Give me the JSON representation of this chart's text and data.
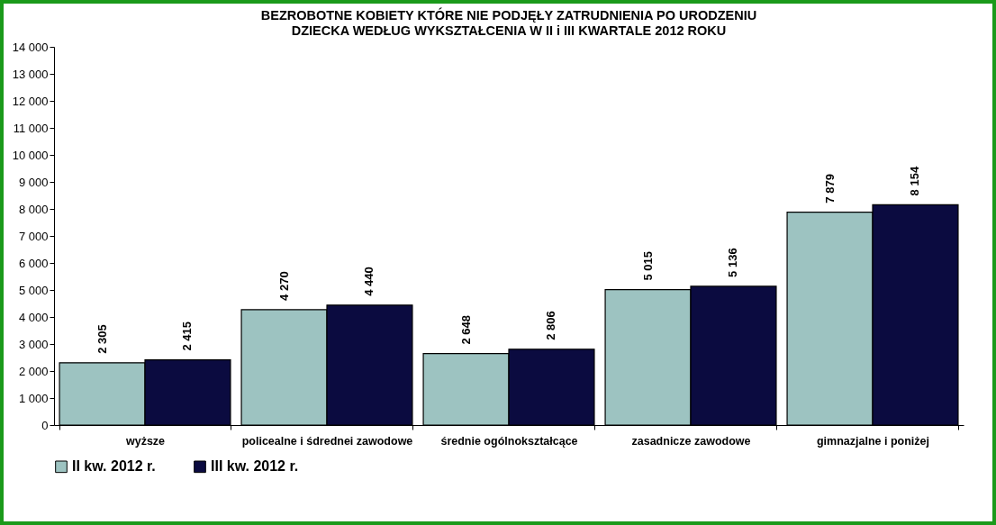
{
  "chart_data": {
    "type": "bar",
    "title": "BEZROBOTNE KOBIETY KTÓRE NIE PODJĘŁY ZATRUDNIENIA  PO URODZENIU\nDZIECKA WEDŁUG WYKSZTAŁCENIA  W II i III KWARTALE 2012 ROKU",
    "categories": [
      "wyższe",
      "policealne i śdrednei zawodowe",
      "średnie ogólnokształcące",
      "zasadnicze zawodowe",
      "gimnazjalne i poniżej"
    ],
    "series": [
      {
        "name": "II kw. 2012 r.",
        "color": "#9dc3c1",
        "values": [
          2305,
          4270,
          2648,
          5015,
          7879
        ],
        "value_labels": [
          "2 305",
          "4 270",
          "2 648",
          "5 015",
          "7 879"
        ]
      },
      {
        "name": "III kw. 2012 r.",
        "color": "#0b0b40",
        "values": [
          2415,
          4440,
          2806,
          5136,
          8154
        ],
        "value_labels": [
          "2 415",
          "4 440",
          "2 806",
          "5 136",
          "8 154"
        ]
      }
    ],
    "ylim": [
      0,
      14000
    ],
    "yticks": [
      0,
      {
        "value": 1000,
        "label": "1 000"
      },
      {
        "value": 2000,
        "label": "2 000"
      },
      {
        "value": 3000,
        "label": "3 000"
      },
      {
        "value": 4000,
        "label": "4 000"
      },
      {
        "value": 5000,
        "label": "5 000"
      },
      {
        "value": 6000,
        "label": "6 000"
      },
      {
        "value": 7000,
        "label": "7 000"
      },
      {
        "value": 8000,
        "label": "8 000"
      },
      {
        "value": 9000,
        "label": "9 000"
      },
      {
        "value": 10000,
        "label": "10 000"
      },
      {
        "value": 11000,
        "label": "11 000"
      },
      {
        "value": 12000,
        "label": "12 000"
      },
      {
        "value": 13000,
        "label": "13 000"
      },
      {
        "value": 14000,
        "label": "14 000"
      }
    ],
    "grid": false,
    "legend": "bottom"
  }
}
